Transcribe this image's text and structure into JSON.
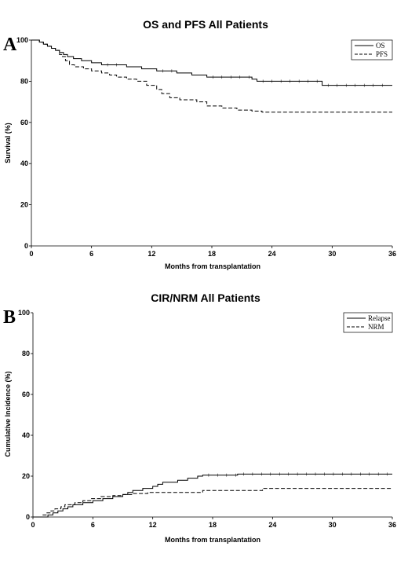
{
  "chart_data": [
    {
      "type": "line",
      "panel_label": "A",
      "title": "OS and PFS All Patients",
      "xlabel": "Months from transplantation",
      "ylabel": "Survival (%)",
      "xlim": [
        0,
        36
      ],
      "ylim": [
        0,
        100
      ],
      "xticks": [
        0,
        6,
        12,
        18,
        24,
        30,
        36
      ],
      "yticks": [
        0,
        20,
        40,
        60,
        80,
        100
      ],
      "grid": false,
      "legend_position": "top-right",
      "step": true,
      "series": [
        {
          "name": "OS",
          "style": "solid",
          "x": [
            0,
            0.8,
            1.2,
            1.6,
            2.0,
            2.4,
            2.8,
            3.2,
            3.6,
            4.2,
            5.0,
            6.0,
            7.0,
            9.5,
            11.0,
            12.5,
            14.5,
            16.0,
            17.5,
            22.0,
            22.5,
            29.0,
            36.0
          ],
          "y": [
            100,
            99,
            98,
            97,
            96,
            95,
            94,
            93,
            92,
            91,
            90,
            89,
            88,
            87,
            86,
            85,
            84,
            83,
            82,
            81,
            80,
            78,
            78
          ]
        },
        {
          "name": "PFS",
          "style": "dashed",
          "x": [
            0,
            0.8,
            1.2,
            1.6,
            2.0,
            2.4,
            2.8,
            3.1,
            3.4,
            3.8,
            4.3,
            5.2,
            6.0,
            7.0,
            7.8,
            8.5,
            9.5,
            10.5,
            11.5,
            12.5,
            13.0,
            13.8,
            14.8,
            16.5,
            17.5,
            19.0,
            20.5,
            22.0,
            23.0,
            36.0
          ],
          "y": [
            100,
            99,
            98,
            97,
            96,
            95,
            93,
            92,
            90,
            88,
            87,
            86,
            85,
            84,
            83,
            82,
            81,
            80,
            78,
            76,
            74,
            72,
            71,
            70,
            68,
            67,
            66,
            65.5,
            65,
            65
          ]
        }
      ]
    },
    {
      "type": "line",
      "panel_label": "B",
      "title": "CIR/NRM All Patients",
      "xlabel": "Months from transplantation",
      "ylabel": "Cumulative Incidence (%)",
      "xlim": [
        0,
        36
      ],
      "ylim": [
        0,
        100
      ],
      "xticks": [
        0,
        6,
        12,
        18,
        24,
        30,
        36
      ],
      "yticks": [
        0,
        20,
        40,
        60,
        80,
        100
      ],
      "grid": false,
      "legend_position": "top-right",
      "step": true,
      "series": [
        {
          "name": "Relapse",
          "style": "solid",
          "x": [
            0,
            1.5,
            2.0,
            2.5,
            3.0,
            3.5,
            4.0,
            5.0,
            6.0,
            7.0,
            8.0,
            9.0,
            9.5,
            10.0,
            11.0,
            12.0,
            12.5,
            13.0,
            14.5,
            15.5,
            16.5,
            17.0,
            20.5,
            36.0
          ],
          "y": [
            0,
            1,
            2,
            3,
            4,
            5,
            6,
            7,
            8,
            9,
            10,
            11,
            12,
            13,
            14,
            15,
            16,
            17,
            18,
            19,
            20,
            20.5,
            21,
            21
          ]
        },
        {
          "name": "NRM",
          "style": "dashed",
          "x": [
            0,
            1.0,
            1.4,
            1.8,
            2.2,
            2.8,
            3.2,
            4.2,
            5.0,
            5.8,
            6.8,
            8.0,
            9.0,
            10.0,
            11.5,
            12.0,
            17.0,
            23.0,
            36.0
          ],
          "y": [
            0,
            1,
            2,
            3,
            4,
            5,
            6,
            7,
            8,
            9,
            10,
            10.5,
            11,
            11.5,
            12,
            12,
            13,
            14,
            14
          ]
        }
      ]
    }
  ]
}
